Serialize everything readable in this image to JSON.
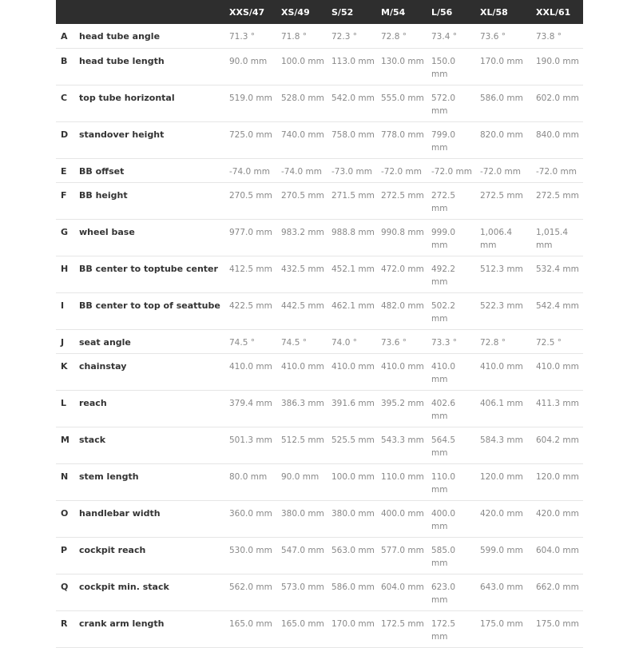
{
  "table": {
    "columns": [
      "XXS/47",
      "XS/49",
      "S/52",
      "M/54",
      "L/56",
      "XL/58",
      "XXL/61"
    ],
    "rows": [
      {
        "letter": "A",
        "label": "head tube angle",
        "values": [
          "71.3 °",
          "71.8 °",
          "72.3 °",
          "72.8 °",
          "73.4 °",
          "73.6 °",
          "73.8 °"
        ]
      },
      {
        "letter": "B",
        "label": "head tube length",
        "values": [
          "90.0 mm",
          "100.0 mm",
          "113.0 mm",
          "130.0 mm",
          "150.0 mm",
          "170.0 mm",
          "190.0 mm"
        ]
      },
      {
        "letter": "C",
        "label": "top tube horizontal",
        "values": [
          "519.0 mm",
          "528.0 mm",
          "542.0 mm",
          "555.0 mm",
          "572.0 mm",
          "586.0 mm",
          "602.0 mm"
        ]
      },
      {
        "letter": "D",
        "label": "standover height",
        "values": [
          "725.0 mm",
          "740.0 mm",
          "758.0 mm",
          "778.0 mm",
          "799.0 mm",
          "820.0 mm",
          "840.0 mm"
        ]
      },
      {
        "letter": "E",
        "label": "BB offset",
        "values": [
          "-74.0 mm",
          "-74.0 mm",
          "-73.0 mm",
          "-72.0 mm",
          "-72.0 mm",
          "-72.0 mm",
          "-72.0 mm"
        ]
      },
      {
        "letter": "F",
        "label": "BB height",
        "values": [
          "270.5 mm",
          "270.5 mm",
          "271.5 mm",
          "272.5 mm",
          "272.5 mm",
          "272.5 mm",
          "272.5 mm"
        ]
      },
      {
        "letter": "G",
        "label": "wheel base",
        "values": [
          "977.0 mm",
          "983.2 mm",
          "988.8 mm",
          "990.8 mm",
          "999.0 mm",
          "1,006.4 mm",
          "1,015.4 mm"
        ]
      },
      {
        "letter": "H",
        "label": "BB center to toptube center",
        "values": [
          "412.5 mm",
          "432.5 mm",
          "452.1 mm",
          "472.0 mm",
          "492.2 mm",
          "512.3 mm",
          "532.4 mm"
        ]
      },
      {
        "letter": "I",
        "label": "BB center to top of seattube",
        "values": [
          "422.5 mm",
          "442.5 mm",
          "462.1 mm",
          "482.0 mm",
          "502.2 mm",
          "522.3 mm",
          "542.4 mm"
        ]
      },
      {
        "letter": "J",
        "label": "seat angle",
        "values": [
          "74.5 °",
          "74.5 °",
          "74.0 °",
          "73.6 °",
          "73.3 °",
          "72.8 °",
          "72.5 °"
        ]
      },
      {
        "letter": "K",
        "label": "chainstay",
        "values": [
          "410.0 mm",
          "410.0 mm",
          "410.0 mm",
          "410.0 mm",
          "410.0 mm",
          "410.0 mm",
          "410.0 mm"
        ]
      },
      {
        "letter": "L",
        "label": "reach",
        "values": [
          "379.4 mm",
          "386.3 mm",
          "391.6 mm",
          "395.2 mm",
          "402.6 mm",
          "406.1 mm",
          "411.3 mm"
        ]
      },
      {
        "letter": "M",
        "label": "stack",
        "values": [
          "501.3 mm",
          "512.5 mm",
          "525.5 mm",
          "543.3 mm",
          "564.5 mm",
          "584.3 mm",
          "604.2 mm"
        ]
      },
      {
        "letter": "N",
        "label": "stem length",
        "values": [
          "80.0 mm",
          "90.0 mm",
          "100.0 mm",
          "110.0 mm",
          "110.0 mm",
          "120.0 mm",
          "120.0 mm"
        ]
      },
      {
        "letter": "O",
        "label": "handlebar width",
        "values": [
          "360.0 mm",
          "380.0 mm",
          "380.0 mm",
          "400.0 mm",
          "400.0 mm",
          "420.0 mm",
          "420.0 mm"
        ]
      },
      {
        "letter": "P",
        "label": "cockpit reach",
        "values": [
          "530.0 mm",
          "547.0 mm",
          "563.0 mm",
          "577.0 mm",
          "585.0 mm",
          "599.0 mm",
          "604.0 mm"
        ]
      },
      {
        "letter": "Q",
        "label": "cockpit min. stack",
        "values": [
          "562.0 mm",
          "573.0 mm",
          "586.0 mm",
          "604.0 mm",
          "623.0 mm",
          "643.0 mm",
          "662.0 mm"
        ]
      },
      {
        "letter": "R",
        "label": "crank arm length",
        "values": [
          "165.0 mm",
          "165.0 mm",
          "170.0 mm",
          "172.5 mm",
          "172.5 mm",
          "175.0 mm",
          "175.0 mm"
        ]
      }
    ]
  }
}
